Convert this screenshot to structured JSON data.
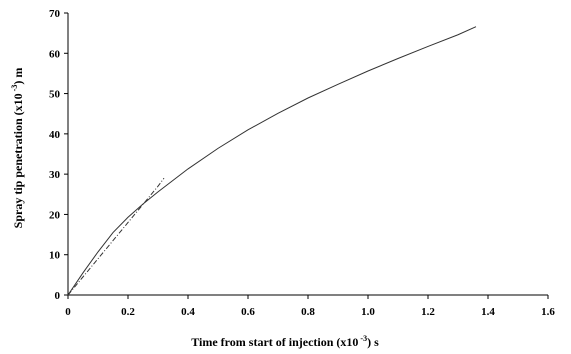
{
  "chart_data": {
    "type": "line",
    "title": "",
    "xlabel": {
      "prefix": "Time from start of injection (x10",
      "sup": " -3",
      "suffix": ") s"
    },
    "ylabel": {
      "prefix": "Spray tip penetration (x10",
      "sup": " -3",
      "suffix": ") m"
    },
    "xlim": [
      0,
      1.6
    ],
    "ylim": [
      0,
      70
    ],
    "xticks": [
      0,
      0.2,
      0.4,
      0.6,
      0.8,
      1.0,
      1.2,
      1.4,
      1.6
    ],
    "xtick_labels": [
      "0",
      "0.2",
      "0.4",
      "0.6",
      "0.8",
      "1.0",
      "1.2",
      "1.4",
      "1.6"
    ],
    "yticks": [
      0,
      10,
      20,
      30,
      40,
      50,
      60,
      70
    ],
    "ytick_labels": [
      "0",
      "10",
      "20",
      "30",
      "40",
      "50",
      "60",
      "70"
    ],
    "grid": false,
    "legend": "none",
    "series": [
      {
        "style": "solid",
        "color": "#333333",
        "x": [
          0,
          0.05,
          0.1,
          0.15,
          0.2,
          0.25,
          0.3,
          0.4,
          0.5,
          0.6,
          0.7,
          0.8,
          0.9,
          1.0,
          1.1,
          1.2,
          1.3,
          1.36
        ],
        "y": [
          0,
          5.5,
          10.7,
          15.5,
          19.3,
          22.6,
          25.6,
          31.3,
          36.4,
          41.0,
          45.1,
          48.9,
          52.3,
          55.6,
          58.7,
          61.7,
          64.6,
          66.6
        ]
      },
      {
        "style": "dashdot",
        "color": "#333333",
        "x": [
          0,
          0.05,
          0.1,
          0.15,
          0.2,
          0.25,
          0.3,
          0.32
        ],
        "y": [
          0,
          4.5,
          9.0,
          13.5,
          18.0,
          22.5,
          27.0,
          29.0
        ]
      }
    ]
  }
}
